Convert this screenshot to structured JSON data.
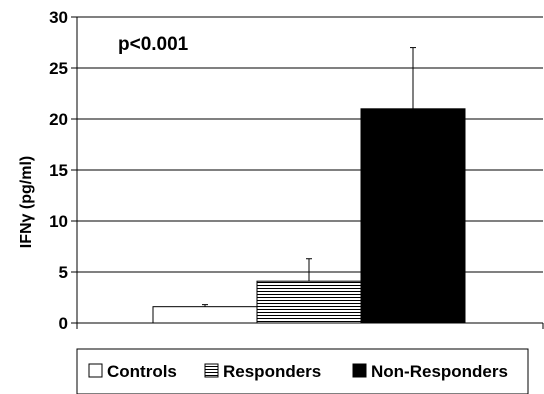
{
  "chart_data": {
    "type": "bar",
    "title": "",
    "xlabel": "",
    "ylabel": "IFNγ (pg/ml)",
    "ylim": [
      0,
      30
    ],
    "yticks": [
      0,
      5,
      10,
      15,
      20,
      25,
      30
    ],
    "grid": true,
    "annotation": "p<0.001",
    "legend_position": "bottom",
    "series": [
      {
        "name": "Controls",
        "value": 1.6,
        "error": 0.2,
        "fill": "#ffffff",
        "pattern": "none"
      },
      {
        "name": "Responders",
        "value": 4.1,
        "error": 2.2,
        "fill": "#ffffff",
        "pattern": "horizontal-lines"
      },
      {
        "name": "Non-Responders",
        "value": 21.0,
        "error": 6.0,
        "fill": "#000000",
        "pattern": "none"
      }
    ]
  }
}
